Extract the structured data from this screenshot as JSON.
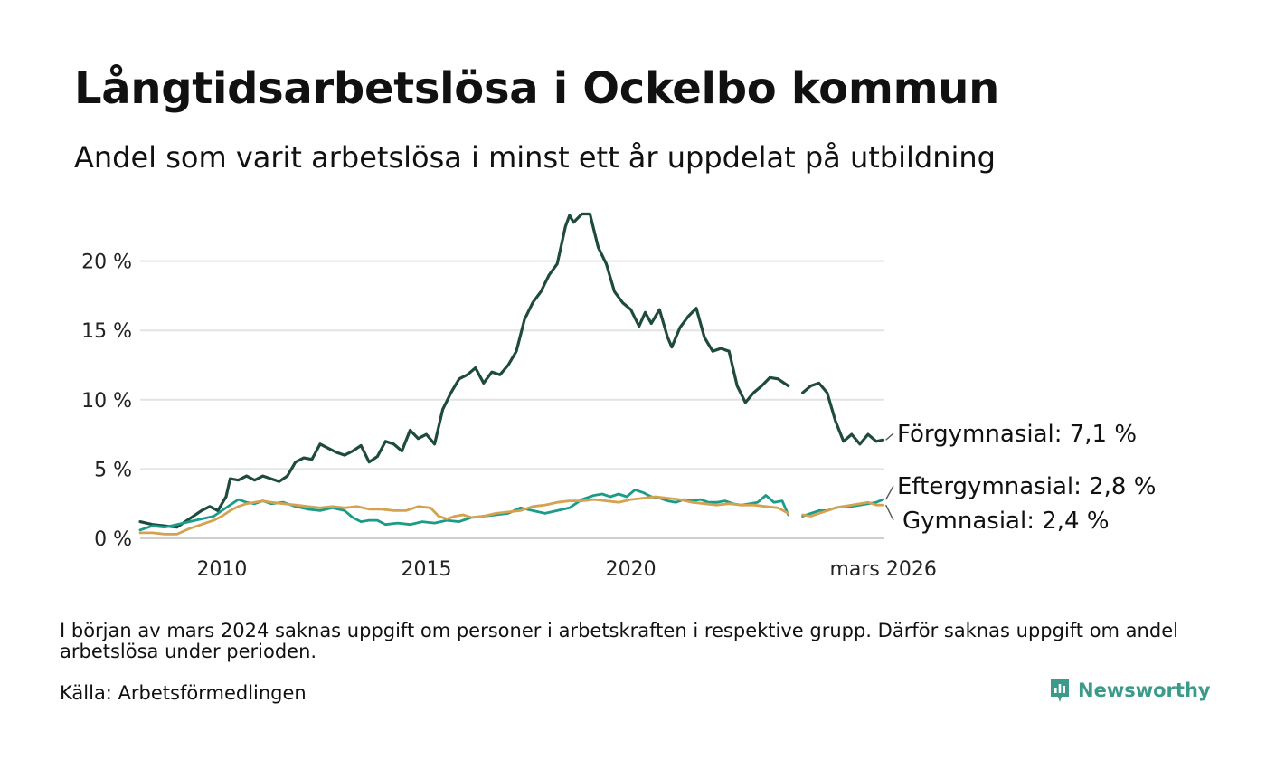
{
  "header": {
    "title": "Långtidsarbetslösa i Ockelbo kommun",
    "subtitle": "Andel som varit arbetslösa i minst ett år uppdelat på utbildning"
  },
  "footer": {
    "note": "I början av mars 2024 saknas uppgift om personer i arbetskraften i respektive grupp. Därför saknas uppgift om andel arbetslösa under perioden.",
    "source": "Källa: Arbetsförmedlingen",
    "brand": "Newsworthy",
    "brand_color": "#3c9a8a"
  },
  "chart_data": {
    "type": "line",
    "title": "Långtidsarbetslösa i Ockelbo kommun",
    "xlabel": "",
    "ylabel": "",
    "xlim": [
      2008.0,
      2026.2
    ],
    "ylim": [
      0,
      25
    ],
    "y_ticks": [
      0,
      5,
      10,
      15,
      20
    ],
    "y_tick_labels": [
      "0 %",
      "5 %",
      "10 %",
      "15 %",
      "20 %"
    ],
    "x_ticks": [
      2010,
      2015,
      2020,
      2026.17
    ],
    "x_tick_labels": [
      "2010",
      "2015",
      "2020",
      "mars 2026"
    ],
    "grid": true,
    "gap": [
      2023.85,
      2024.2
    ],
    "series": [
      {
        "name": "Förgymnasial",
        "label": "Förgymnasial: 7,1 %",
        "color": "#1f4a3e",
        "points": [
          [
            2008.0,
            1.2
          ],
          [
            2008.3,
            1.0
          ],
          [
            2008.6,
            0.9
          ],
          [
            2008.9,
            0.8
          ],
          [
            2009.2,
            1.4
          ],
          [
            2009.5,
            2.0
          ],
          [
            2009.7,
            2.3
          ],
          [
            2009.9,
            2.0
          ],
          [
            2010.0,
            2.5
          ],
          [
            2010.1,
            3.0
          ],
          [
            2010.2,
            4.3
          ],
          [
            2010.4,
            4.2
          ],
          [
            2010.6,
            4.5
          ],
          [
            2010.8,
            4.2
          ],
          [
            2011.0,
            4.5
          ],
          [
            2011.2,
            4.3
          ],
          [
            2011.4,
            4.1
          ],
          [
            2011.6,
            4.5
          ],
          [
            2011.8,
            5.5
          ],
          [
            2012.0,
            5.8
          ],
          [
            2012.2,
            5.7
          ],
          [
            2012.4,
            6.8
          ],
          [
            2012.6,
            6.5
          ],
          [
            2012.8,
            6.2
          ],
          [
            2013.0,
            6.0
          ],
          [
            2013.2,
            6.3
          ],
          [
            2013.4,
            6.7
          ],
          [
            2013.6,
            5.5
          ],
          [
            2013.8,
            5.9
          ],
          [
            2014.0,
            7.0
          ],
          [
            2014.2,
            6.8
          ],
          [
            2014.4,
            6.3
          ],
          [
            2014.6,
            7.8
          ],
          [
            2014.8,
            7.2
          ],
          [
            2015.0,
            7.5
          ],
          [
            2015.2,
            6.8
          ],
          [
            2015.4,
            9.3
          ],
          [
            2015.6,
            10.5
          ],
          [
            2015.8,
            11.5
          ],
          [
            2016.0,
            11.8
          ],
          [
            2016.2,
            12.3
          ],
          [
            2016.4,
            11.2
          ],
          [
            2016.6,
            12.0
          ],
          [
            2016.8,
            11.8
          ],
          [
            2017.0,
            12.5
          ],
          [
            2017.2,
            13.5
          ],
          [
            2017.4,
            15.8
          ],
          [
            2017.6,
            17.0
          ],
          [
            2017.8,
            17.8
          ],
          [
            2018.0,
            19.0
          ],
          [
            2018.2,
            19.8
          ],
          [
            2018.4,
            22.5
          ],
          [
            2018.5,
            23.3
          ],
          [
            2018.6,
            22.8
          ],
          [
            2018.8,
            23.4
          ],
          [
            2019.0,
            23.4
          ],
          [
            2019.2,
            21.0
          ],
          [
            2019.4,
            19.8
          ],
          [
            2019.6,
            17.8
          ],
          [
            2019.8,
            17.0
          ],
          [
            2020.0,
            16.5
          ],
          [
            2020.2,
            15.3
          ],
          [
            2020.35,
            16.3
          ],
          [
            2020.5,
            15.5
          ],
          [
            2020.7,
            16.5
          ],
          [
            2020.9,
            14.5
          ],
          [
            2021.0,
            13.8
          ],
          [
            2021.2,
            15.2
          ],
          [
            2021.4,
            16.0
          ],
          [
            2021.6,
            16.6
          ],
          [
            2021.8,
            14.5
          ],
          [
            2022.0,
            13.5
          ],
          [
            2022.2,
            13.7
          ],
          [
            2022.4,
            13.5
          ],
          [
            2022.6,
            11.0
          ],
          [
            2022.8,
            9.8
          ],
          [
            2023.0,
            10.5
          ],
          [
            2023.2,
            11.0
          ],
          [
            2023.4,
            11.6
          ],
          [
            2023.6,
            11.5
          ],
          [
            2023.85,
            11.0
          ],
          [
            2024.2,
            10.5
          ],
          [
            2024.4,
            11.0
          ],
          [
            2024.6,
            11.2
          ],
          [
            2024.8,
            10.5
          ],
          [
            2025.0,
            8.5
          ],
          [
            2025.2,
            7.0
          ],
          [
            2025.4,
            7.5
          ],
          [
            2025.6,
            6.8
          ],
          [
            2025.8,
            7.5
          ],
          [
            2026.0,
            7.0
          ],
          [
            2026.17,
            7.1
          ]
        ]
      },
      {
        "name": "Eftergymnasial",
        "label": "Eftergymnasial: 2,8 %",
        "color": "#1b9b88",
        "points": [
          [
            2008.0,
            0.6
          ],
          [
            2008.3,
            0.9
          ],
          [
            2008.6,
            0.8
          ],
          [
            2008.9,
            1.0
          ],
          [
            2009.2,
            1.2
          ],
          [
            2009.5,
            1.4
          ],
          [
            2009.8,
            1.6
          ],
          [
            2010.0,
            2.0
          ],
          [
            2010.2,
            2.4
          ],
          [
            2010.4,
            2.8
          ],
          [
            2010.6,
            2.6
          ],
          [
            2010.8,
            2.5
          ],
          [
            2011.0,
            2.7
          ],
          [
            2011.2,
            2.5
          ],
          [
            2011.5,
            2.6
          ],
          [
            2011.8,
            2.3
          ],
          [
            2012.1,
            2.1
          ],
          [
            2012.4,
            2.0
          ],
          [
            2012.7,
            2.2
          ],
          [
            2013.0,
            2.0
          ],
          [
            2013.2,
            1.5
          ],
          [
            2013.4,
            1.2
          ],
          [
            2013.6,
            1.3
          ],
          [
            2013.8,
            1.3
          ],
          [
            2014.0,
            1.0
          ],
          [
            2014.3,
            1.1
          ],
          [
            2014.6,
            1.0
          ],
          [
            2014.9,
            1.2
          ],
          [
            2015.2,
            1.1
          ],
          [
            2015.5,
            1.3
          ],
          [
            2015.8,
            1.2
          ],
          [
            2016.1,
            1.5
          ],
          [
            2016.4,
            1.6
          ],
          [
            2016.7,
            1.7
          ],
          [
            2017.0,
            1.8
          ],
          [
            2017.3,
            2.2
          ],
          [
            2017.6,
            2.0
          ],
          [
            2017.9,
            1.8
          ],
          [
            2018.2,
            2.0
          ],
          [
            2018.5,
            2.2
          ],
          [
            2018.8,
            2.8
          ],
          [
            2019.1,
            3.1
          ],
          [
            2019.3,
            3.2
          ],
          [
            2019.5,
            3.0
          ],
          [
            2019.7,
            3.2
          ],
          [
            2019.9,
            3.0
          ],
          [
            2020.1,
            3.5
          ],
          [
            2020.3,
            3.3
          ],
          [
            2020.5,
            3.0
          ],
          [
            2020.7,
            2.9
          ],
          [
            2020.9,
            2.7
          ],
          [
            2021.1,
            2.6
          ],
          [
            2021.3,
            2.8
          ],
          [
            2021.5,
            2.7
          ],
          [
            2021.7,
            2.8
          ],
          [
            2021.9,
            2.6
          ],
          [
            2022.1,
            2.6
          ],
          [
            2022.3,
            2.7
          ],
          [
            2022.5,
            2.5
          ],
          [
            2022.7,
            2.4
          ],
          [
            2022.9,
            2.5
          ],
          [
            2023.1,
            2.6
          ],
          [
            2023.3,
            3.1
          ],
          [
            2023.5,
            2.6
          ],
          [
            2023.7,
            2.7
          ],
          [
            2023.85,
            1.7
          ],
          [
            2024.2,
            1.6
          ],
          [
            2024.4,
            1.8
          ],
          [
            2024.6,
            2.0
          ],
          [
            2024.8,
            2.0
          ],
          [
            2025.0,
            2.2
          ],
          [
            2025.2,
            2.3
          ],
          [
            2025.4,
            2.3
          ],
          [
            2025.6,
            2.4
          ],
          [
            2025.8,
            2.5
          ],
          [
            2026.0,
            2.6
          ],
          [
            2026.17,
            2.8
          ]
        ]
      },
      {
        "name": "Gymnasial",
        "label": "Gymnasial: 2,4 %",
        "color": "#d4a250",
        "points": [
          [
            2008.0,
            0.4
          ],
          [
            2008.3,
            0.4
          ],
          [
            2008.6,
            0.3
          ],
          [
            2008.9,
            0.3
          ],
          [
            2009.2,
            0.7
          ],
          [
            2009.5,
            1.0
          ],
          [
            2009.8,
            1.3
          ],
          [
            2010.0,
            1.6
          ],
          [
            2010.2,
            2.0
          ],
          [
            2010.4,
            2.3
          ],
          [
            2010.6,
            2.5
          ],
          [
            2010.8,
            2.6
          ],
          [
            2011.0,
            2.7
          ],
          [
            2011.2,
            2.6
          ],
          [
            2011.5,
            2.5
          ],
          [
            2011.8,
            2.4
          ],
          [
            2012.1,
            2.3
          ],
          [
            2012.4,
            2.2
          ],
          [
            2012.7,
            2.3
          ],
          [
            2013.0,
            2.2
          ],
          [
            2013.3,
            2.3
          ],
          [
            2013.6,
            2.1
          ],
          [
            2013.9,
            2.1
          ],
          [
            2014.2,
            2.0
          ],
          [
            2014.5,
            2.0
          ],
          [
            2014.8,
            2.3
          ],
          [
            2015.1,
            2.2
          ],
          [
            2015.3,
            1.6
          ],
          [
            2015.5,
            1.4
          ],
          [
            2015.7,
            1.6
          ],
          [
            2015.9,
            1.7
          ],
          [
            2016.1,
            1.5
          ],
          [
            2016.4,
            1.6
          ],
          [
            2016.7,
            1.8
          ],
          [
            2017.0,
            1.9
          ],
          [
            2017.3,
            2.0
          ],
          [
            2017.6,
            2.3
          ],
          [
            2017.9,
            2.4
          ],
          [
            2018.2,
            2.6
          ],
          [
            2018.5,
            2.7
          ],
          [
            2018.8,
            2.7
          ],
          [
            2019.1,
            2.8
          ],
          [
            2019.4,
            2.7
          ],
          [
            2019.7,
            2.6
          ],
          [
            2020.0,
            2.8
          ],
          [
            2020.3,
            2.9
          ],
          [
            2020.6,
            3.0
          ],
          [
            2020.9,
            2.9
          ],
          [
            2021.2,
            2.8
          ],
          [
            2021.5,
            2.6
          ],
          [
            2021.8,
            2.5
          ],
          [
            2022.1,
            2.4
          ],
          [
            2022.4,
            2.5
          ],
          [
            2022.7,
            2.4
          ],
          [
            2023.0,
            2.4
          ],
          [
            2023.3,
            2.3
          ],
          [
            2023.6,
            2.2
          ],
          [
            2023.85,
            1.8
          ],
          [
            2024.2,
            1.7
          ],
          [
            2024.4,
            1.6
          ],
          [
            2024.6,
            1.8
          ],
          [
            2024.8,
            2.0
          ],
          [
            2025.0,
            2.2
          ],
          [
            2025.2,
            2.3
          ],
          [
            2025.4,
            2.4
          ],
          [
            2025.6,
            2.5
          ],
          [
            2025.8,
            2.6
          ],
          [
            2026.0,
            2.4
          ],
          [
            2026.17,
            2.4
          ]
        ]
      }
    ]
  }
}
